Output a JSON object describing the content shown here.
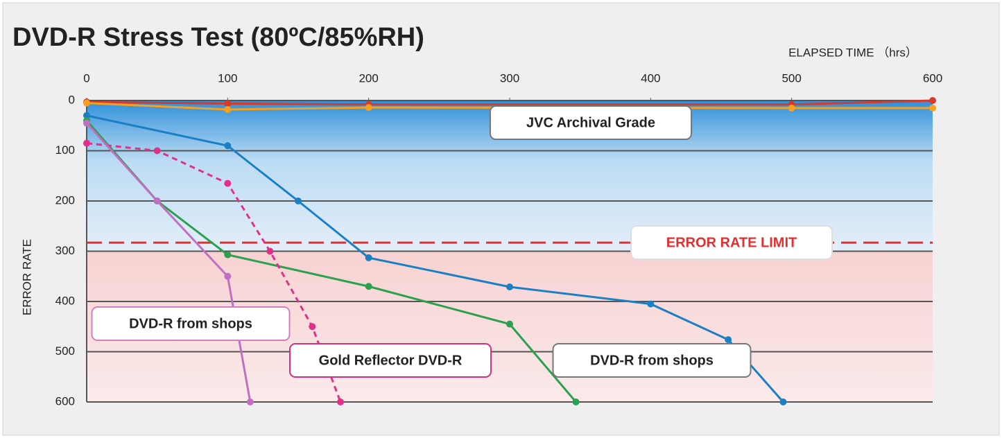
{
  "chart_data": {
    "type": "line",
    "title": "DVD-R Stress Test (80ºC/85%RH)",
    "x_label": "ELAPSED TIME （hrs）",
    "y_label": "ERROR RATE",
    "xlim": [
      0,
      600
    ],
    "ylim": [
      0,
      600
    ],
    "y_reversed": true,
    "x_axis_position": "top",
    "xticks": [
      0,
      100,
      200,
      300,
      400,
      500,
      600
    ],
    "yticks": [
      0,
      100,
      200,
      300,
      400,
      500,
      600
    ],
    "grid": true,
    "threshold": {
      "value": 283,
      "label": "ERROR RATE LIMIT",
      "color": "#e03030"
    },
    "series": [
      {
        "color": "#d83a2a",
        "x": [
          0,
          100,
          200,
          500,
          600
        ],
        "values": [
          3,
          6,
          8,
          8,
          0
        ]
      },
      {
        "name": "JVC Archival Grade",
        "color": "#f5a020",
        "x": [
          0,
          100,
          200,
          500,
          600
        ],
        "values": [
          5,
          18,
          14,
          15,
          15
        ]
      },
      {
        "name": "DVD-R from shops",
        "color": "#1a7fc4",
        "x": [
          0,
          100,
          150,
          200,
          300,
          400,
          455,
          494
        ],
        "values": [
          30,
          90,
          200,
          313,
          371,
          405,
          476,
          600
        ]
      },
      {
        "color": "#2aa050",
        "x": [
          0,
          50,
          100,
          200,
          300,
          347
        ],
        "values": [
          40,
          200,
          307,
          370,
          445,
          600
        ]
      },
      {
        "name": "Gold Reflector DVD-R",
        "color": "#e0308a",
        "dashed": true,
        "x": [
          0,
          50,
          100,
          130,
          160,
          180
        ],
        "values": [
          85,
          100,
          165,
          300,
          450,
          600
        ]
      },
      {
        "name": "DVD-R from shops",
        "color": "#c070c0",
        "x": [
          0,
          50,
          100,
          116
        ],
        "values": [
          45,
          200,
          350,
          600
        ]
      }
    ]
  }
}
